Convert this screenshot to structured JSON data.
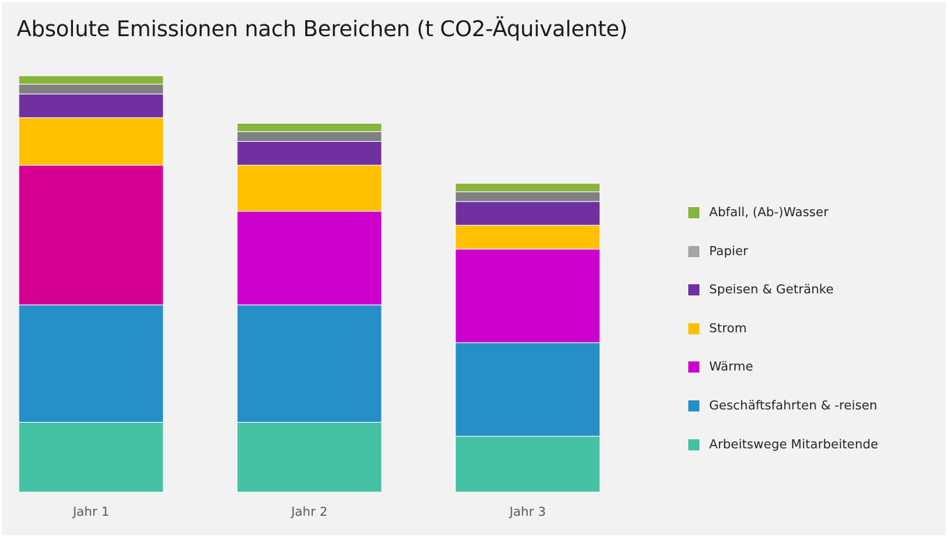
{
  "chart_data": {
    "type": "bar",
    "stacked": true,
    "title": "Absolute Emissionen nach Bereichen (t CO2-Äquivalente)",
    "xlabel": "",
    "ylabel": "",
    "categories": [
      "Jahr 1",
      "Jahr 2",
      "Jahr 3"
    ],
    "ylim": [
      0,
      300
    ],
    "grid": false,
    "legend_position": "right",
    "series": [
      {
        "name": "Arbeitswege Mitarbeitende",
        "color": "#45c1a4",
        "values": [
          50,
          50,
          40
        ]
      },
      {
        "name": "Geschäftsfahrten & -reisen",
        "color": "#268fc8",
        "values": [
          84,
          84,
          67
        ]
      },
      {
        "name": "Wärme",
        "color": "#d50093",
        "values": [
          100,
          0,
          0
        ]
      },
      {
        "name": "Wärme",
        "color": "#cc00cc",
        "values": [
          0,
          67,
          67
        ]
      },
      {
        "name": "Strom",
        "color": "#ffc000",
        "values": [
          34,
          33,
          17
        ]
      },
      {
        "name": "Speisen & Getränke",
        "color": "#7030a0",
        "values": [
          17,
          17,
          17
        ]
      },
      {
        "name": "Papier",
        "color": "#808080",
        "values": [
          7,
          7,
          7
        ]
      },
      {
        "name": "Abfall, (Ab-)Wasser",
        "color": "#87b43a",
        "values": [
          6,
          6,
          6
        ]
      }
    ]
  },
  "legend": [
    {
      "label": "Abfall, (Ab-)Wasser",
      "color": "#87b43a"
    },
    {
      "label": "Papier",
      "color": "#a6a6a6"
    },
    {
      "label": "Speisen & Getränke",
      "color": "#7030a0"
    },
    {
      "label": "Strom",
      "color": "#ffc000"
    },
    {
      "label": "Wärme",
      "color": "#cc00cc"
    },
    {
      "label": "Geschäftsfahrten & -reisen",
      "color": "#268fc8"
    },
    {
      "label": "Arbeitswege Mitarbeitende",
      "color": "#45c1a4"
    }
  ]
}
